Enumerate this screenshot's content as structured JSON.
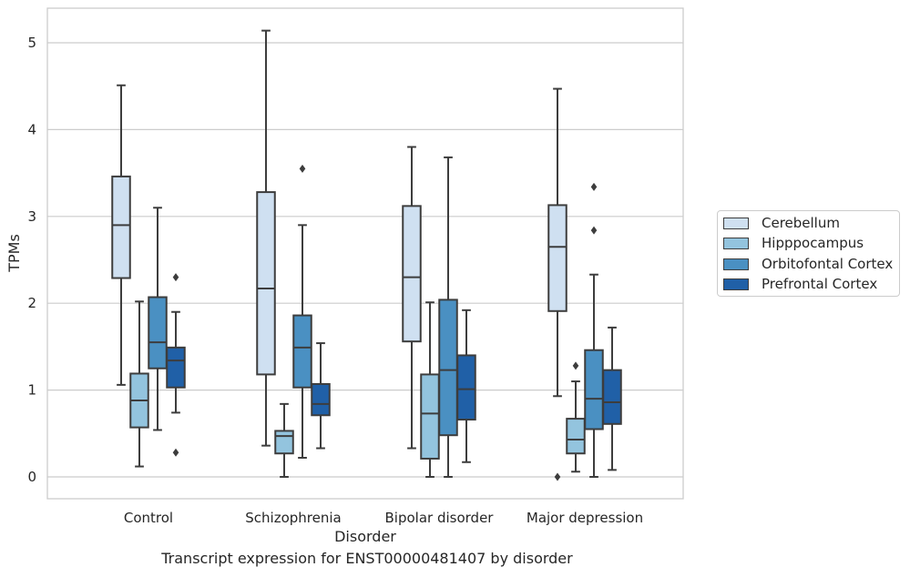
{
  "chart_data": {
    "type": "box",
    "caption": "Transcript expression for ENST00000481407 by disorder",
    "xlabel": "Disorder",
    "ylabel": "TPMs",
    "ylim": [
      -0.25,
      5.4
    ],
    "yticks": [
      0,
      1,
      2,
      3,
      4,
      5
    ],
    "grid": "horizontal",
    "legend_position": "right",
    "categories": [
      "Control",
      "Schizophrenia",
      "Bipolar disorder",
      "Major depression"
    ],
    "series": [
      {
        "name": "Cerebellum",
        "color": "#cfe0f1",
        "boxes": [
          {
            "whislo": 1.06,
            "q1": 2.29,
            "med": 2.9,
            "q3": 3.46,
            "whishi": 4.51,
            "fliers": []
          },
          {
            "whislo": 0.36,
            "q1": 1.18,
            "med": 2.17,
            "q3": 3.28,
            "whishi": 5.14,
            "fliers": []
          },
          {
            "whislo": 0.33,
            "q1": 1.56,
            "med": 2.3,
            "q3": 3.12,
            "whishi": 3.8,
            "fliers": []
          },
          {
            "whislo": 0.93,
            "q1": 1.91,
            "med": 2.65,
            "q3": 3.13,
            "whishi": 4.47,
            "fliers": [
              0.0
            ]
          }
        ]
      },
      {
        "name": "Hipppocampus",
        "color": "#93c4de",
        "boxes": [
          {
            "whislo": 0.12,
            "q1": 0.57,
            "med": 0.88,
            "q3": 1.19,
            "whishi": 2.02,
            "fliers": []
          },
          {
            "whislo": 0.0,
            "q1": 0.27,
            "med": 0.47,
            "q3": 0.53,
            "whishi": 0.84,
            "fliers": []
          },
          {
            "whislo": 0.0,
            "q1": 0.21,
            "med": 0.73,
            "q3": 1.18,
            "whishi": 2.01,
            "fliers": []
          },
          {
            "whislo": 0.06,
            "q1": 0.27,
            "med": 0.43,
            "q3": 0.67,
            "whishi": 1.1,
            "fliers": [
              1.28
            ]
          }
        ]
      },
      {
        "name": "Orbitofontal Cortex",
        "color": "#4a90c2",
        "boxes": [
          {
            "whislo": 0.54,
            "q1": 1.25,
            "med": 1.55,
            "q3": 2.07,
            "whishi": 3.1,
            "fliers": []
          },
          {
            "whislo": 0.22,
            "q1": 1.03,
            "med": 1.49,
            "q3": 1.86,
            "whishi": 2.9,
            "fliers": [
              3.55
            ]
          },
          {
            "whislo": 0.0,
            "q1": 0.48,
            "med": 1.23,
            "q3": 2.04,
            "whishi": 3.68,
            "fliers": []
          },
          {
            "whislo": 0.0,
            "q1": 0.55,
            "med": 0.9,
            "q3": 1.46,
            "whishi": 2.33,
            "fliers": [
              2.84,
              3.34
            ]
          }
        ]
      },
      {
        "name": "Prefrontal Cortex",
        "color": "#2060a7",
        "boxes": [
          {
            "whislo": 0.74,
            "q1": 1.03,
            "med": 1.34,
            "q3": 1.49,
            "whishi": 1.9,
            "fliers": [
              0.28,
              2.3
            ]
          },
          {
            "whislo": 0.33,
            "q1": 0.71,
            "med": 0.84,
            "q3": 1.07,
            "whishi": 1.54,
            "fliers": []
          },
          {
            "whislo": 0.17,
            "q1": 0.66,
            "med": 1.01,
            "q3": 1.4,
            "whishi": 1.92,
            "fliers": []
          },
          {
            "whislo": 0.08,
            "q1": 0.61,
            "med": 0.86,
            "q3": 1.23,
            "whishi": 1.72,
            "fliers": []
          }
        ]
      }
    ]
  }
}
